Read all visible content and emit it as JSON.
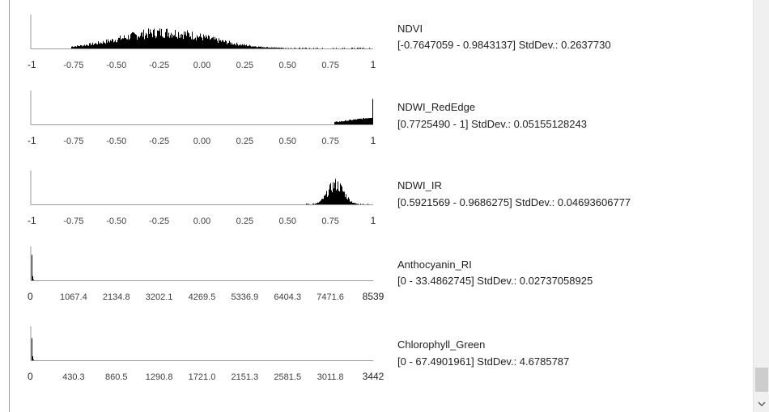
{
  "histograms": [
    {
      "name": "NDVI",
      "range_text": "[-0.7647059 - 0.9843137] StdDev.: 0.2637730",
      "axis_min": -1,
      "axis_max": 1,
      "tick_labels": [
        "-1",
        "-0.75",
        "-0.50",
        "-0.25",
        "0.00",
        "0.25",
        "0.50",
        "0.75",
        "1"
      ],
      "tick_values": [
        -1,
        -0.75,
        -0.5,
        -0.25,
        0,
        0.25,
        0.5,
        0.75,
        1
      ],
      "mean": -0.22,
      "std": 0.263773,
      "data_min": -0.7647059,
      "data_max": 0.9843137,
      "peak": 0.55
    },
    {
      "name": "NDWI_RedEdge",
      "range_text": "[0.7725490 - 1] StdDev.: 0.05155128243",
      "axis_min": -1,
      "axis_max": 1,
      "tick_labels": [
        "-1",
        "-0.75",
        "-0.50",
        "-0.25",
        "0.00",
        "0.25",
        "0.50",
        "0.75",
        "1"
      ],
      "tick_values": [
        -1,
        -0.75,
        -0.5,
        -0.25,
        0,
        0.25,
        0.5,
        0.75,
        1
      ],
      "shape": "ramp",
      "data_min": 0.772549,
      "data_max": 1,
      "peak": 0.75
    },
    {
      "name": "NDWI_IR",
      "range_text": "[0.5921569 - 0.9686275] StdDev.: 0.04693606777",
      "axis_min": -1,
      "axis_max": 1,
      "tick_labels": [
        "-1",
        "-0.75",
        "-0.50",
        "-0.25",
        "0.00",
        "0.25",
        "0.50",
        "0.75",
        "1"
      ],
      "tick_values": [
        -1,
        -0.75,
        -0.5,
        -0.25,
        0,
        0.25,
        0.5,
        0.75,
        1
      ],
      "mean": 0.78,
      "std": 0.04693606777,
      "data_min": 0.5921569,
      "data_max": 0.9686275,
      "peak": 0.68
    },
    {
      "name": "Anthocyanin_RI",
      "range_text": "[0 - 33.4862745] StdDev.: 0.02737058925",
      "axis_min": 0,
      "axis_max": 8539,
      "tick_labels": [
        "0",
        "1067.4",
        "2134.8",
        "3202.1",
        "4269.5",
        "5336.9",
        "6404.3",
        "7471.6",
        "8539"
      ],
      "tick_values": [
        0,
        1067.4,
        2134.8,
        3202.1,
        4269.5,
        5336.9,
        6404.3,
        7471.6,
        8539
      ],
      "shape": "spike",
      "data_min": 0,
      "data_max": 33.4862745,
      "peak": 0.75
    },
    {
      "name": "Chlorophyll_Green",
      "range_text": "[0 - 67.4901961] StdDev.: 4.6785787",
      "axis_min": 0,
      "axis_max": 3442,
      "tick_labels": [
        "0",
        "430.3",
        "860.5",
        "1290.8",
        "1721.0",
        "2151.3",
        "2581.5",
        "3011.8",
        "3442"
      ],
      "tick_values": [
        0,
        430.3,
        860.5,
        1290.8,
        1721.0,
        2151.3,
        2581.5,
        3011.8,
        3442
      ],
      "shape": "spike",
      "data_min": 0,
      "data_max": 67.4901961,
      "peak": 0.65
    }
  ],
  "colors": {
    "bar": "#000000",
    "axis": "#9a9a9a",
    "text": "#222222",
    "scrollbar": "#f0f0f0"
  },
  "scrollbar": {
    "down_icon": "chevron-down-icon"
  }
}
